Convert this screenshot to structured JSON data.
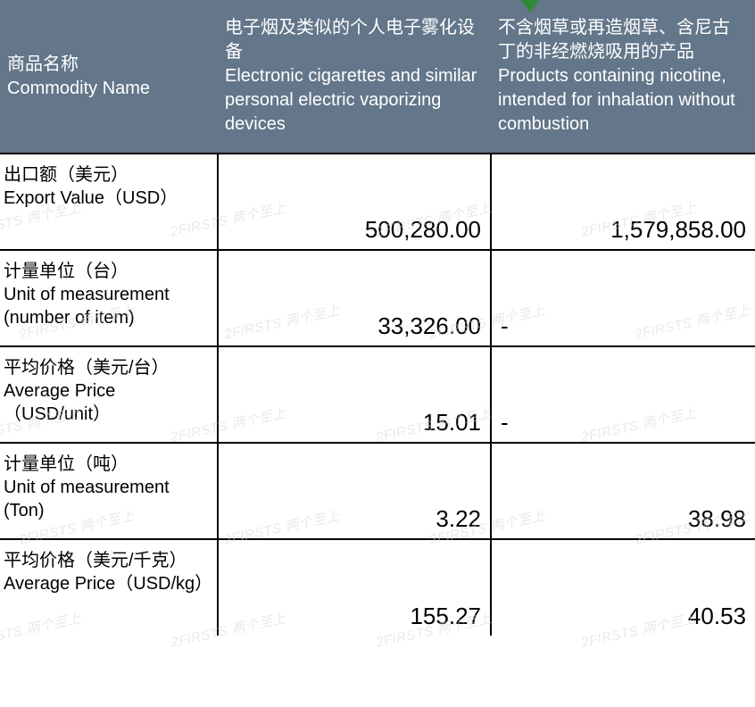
{
  "colors": {
    "header_bg": "#63768a",
    "header_fg": "#ffffff",
    "border": "#000000",
    "text": "#000000",
    "watermark": "#d8d8d8",
    "arrow": "#2e8b3c",
    "page_bg": "#ffffff"
  },
  "typography": {
    "header_fontsize_pt": 15,
    "label_fontsize_pt": 15,
    "value_fontsize_pt": 20
  },
  "watermark_text": "2FIRSTS 两个至上",
  "header": {
    "col0": {
      "cn": "商品名称",
      "en": "Commodity Name"
    },
    "col1": {
      "cn": "电子烟及类似的个人电子雾化设备",
      "en": "Electronic cigarettes and similar personal electric vaporizing devices"
    },
    "col2": {
      "cn": "不含烟草或再造烟草、含尼古丁的非经燃烧吸用的产品",
      "en": "Products containing nicotine, intended for inhalation without combustion"
    }
  },
  "rows": [
    {
      "label": {
        "cn": "出口额（美元）",
        "en": " Export Value（USD）"
      },
      "v1": "500,280.00",
      "v2": "1,579,858.00",
      "v2_dash": false
    },
    {
      "label": {
        "cn": "计量单位（台）",
        "en": "Unit of measurement (number of item)"
      },
      "v1": "33,326.00",
      "v2": "-",
      "v2_dash": true
    },
    {
      "label": {
        "cn": "平均价格（美元/台）",
        "en": "Average Price（USD/unit）"
      },
      "v1": "15.01",
      "v2": "-",
      "v2_dash": true
    },
    {
      "label": {
        "cn": "计量单位（吨）",
        "en": "Unit of measurement (Ton)"
      },
      "v1": "3.22",
      "v2": "38.98",
      "v2_dash": false
    },
    {
      "label": {
        "cn": "平均价格（美元/千克）",
        "en": "Average Price（USD/kg）"
      },
      "v1": "155.27",
      "v2": "40.53",
      "v2_dash": false
    }
  ]
}
